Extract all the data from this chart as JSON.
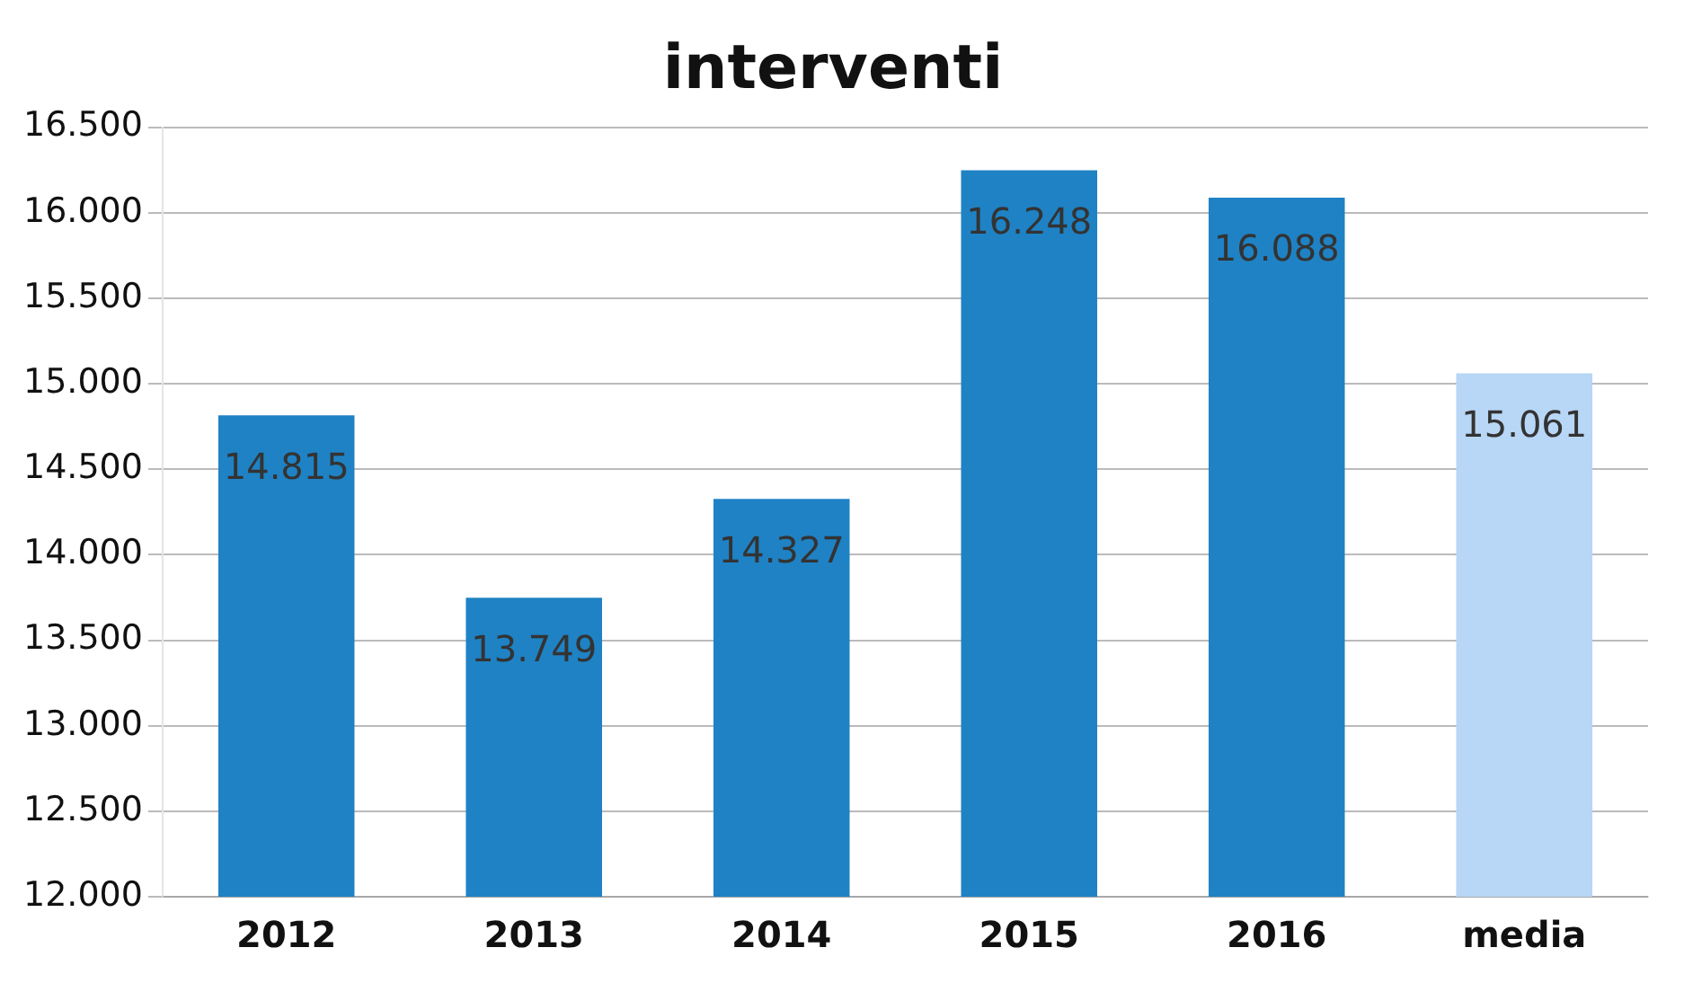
{
  "chart_data": {
    "type": "bar",
    "title": "interventi",
    "categories": [
      "2012",
      "2013",
      "2014",
      "2015",
      "2016",
      "media"
    ],
    "values": [
      14815,
      13749,
      14327,
      16248,
      16088,
      15061
    ],
    "colors": [
      "#1f82c4",
      "#1f82c4",
      "#1f82c4",
      "#1f82c4",
      "#1f82c4",
      "#b8d6f5"
    ],
    "ylim": [
      12000,
      16500
    ],
    "yticks": [
      {
        "value": 12000,
        "label": "12.000"
      },
      {
        "value": 12500,
        "label": "12.500"
      },
      {
        "value": 13000,
        "label": "13.000"
      },
      {
        "value": 13500,
        "label": "13.500"
      },
      {
        "value": 14000,
        "label": "14.000"
      },
      {
        "value": 14500,
        "label": "14.500"
      },
      {
        "value": 15000,
        "label": "15.000"
      },
      {
        "value": 15500,
        "label": "15.500"
      },
      {
        "value": 16000,
        "label": "16.000"
      },
      {
        "value": 16500,
        "label": "16.500"
      }
    ],
    "value_labels": [
      "14.815",
      "13.749",
      "14.327",
      "16.248",
      "16.088",
      "15.061"
    ],
    "grid": "y"
  }
}
